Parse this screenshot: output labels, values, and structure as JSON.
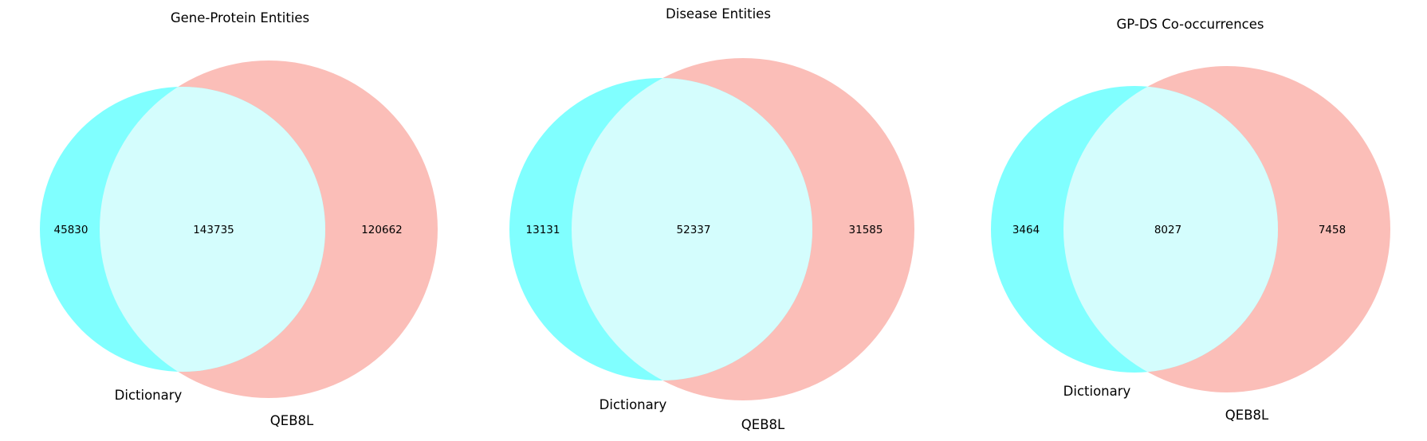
{
  "colors": {
    "left_only": "#80ffff",
    "right_only": "#fbbeb8",
    "overlap": "#d4fdfd",
    "text": "#000000"
  },
  "chart_data": [
    {
      "type": "venn",
      "title": "Gene-Protein Entities",
      "sets": [
        "Dictionary",
        "QEB8L"
      ],
      "values": {
        "left_only": 45830,
        "overlap": 143735,
        "right_only": 120662
      }
    },
    {
      "type": "venn",
      "title": "Disease Entities",
      "sets": [
        "Dictionary",
        "QEB8L"
      ],
      "values": {
        "left_only": 13131,
        "overlap": 52337,
        "right_only": 31585
      }
    },
    {
      "type": "venn",
      "title": "GP-DS Co-occurrences",
      "sets": [
        "Dictionary",
        "QEB8L"
      ],
      "values": {
        "left_only": 3464,
        "overlap": 8027,
        "right_only": 7458
      }
    }
  ]
}
